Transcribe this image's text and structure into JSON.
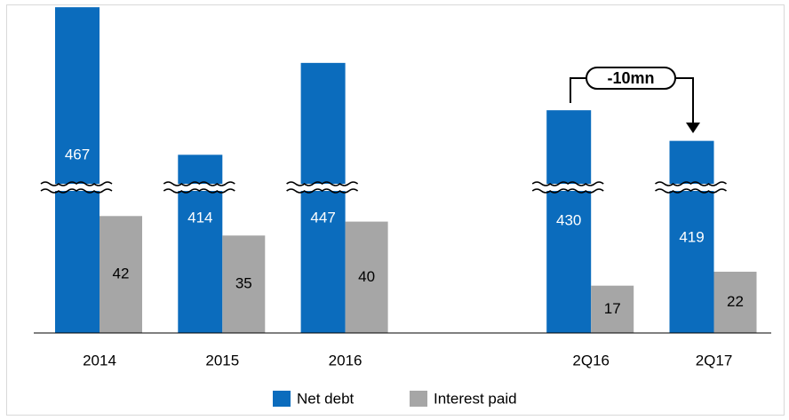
{
  "chart_data": {
    "type": "bar",
    "categories": [
      "2014",
      "2015",
      "2016",
      "2Q16",
      "2Q17"
    ],
    "series": [
      {
        "name": "Net debt",
        "color": "#0b6cbd",
        "values": [
          467,
          414,
          447,
          430,
          419
        ],
        "axis": "y2"
      },
      {
        "name": "Interest paid",
        "color": "#a6a6a6",
        "values": [
          42,
          35,
          40,
          17,
          22
        ]
      }
    ],
    "ylim": [
      0,
      118
    ],
    "y2lim": [
      350,
      468
    ],
    "axis_break": true,
    "annotation": "-10mn",
    "legend": "bottom"
  }
}
